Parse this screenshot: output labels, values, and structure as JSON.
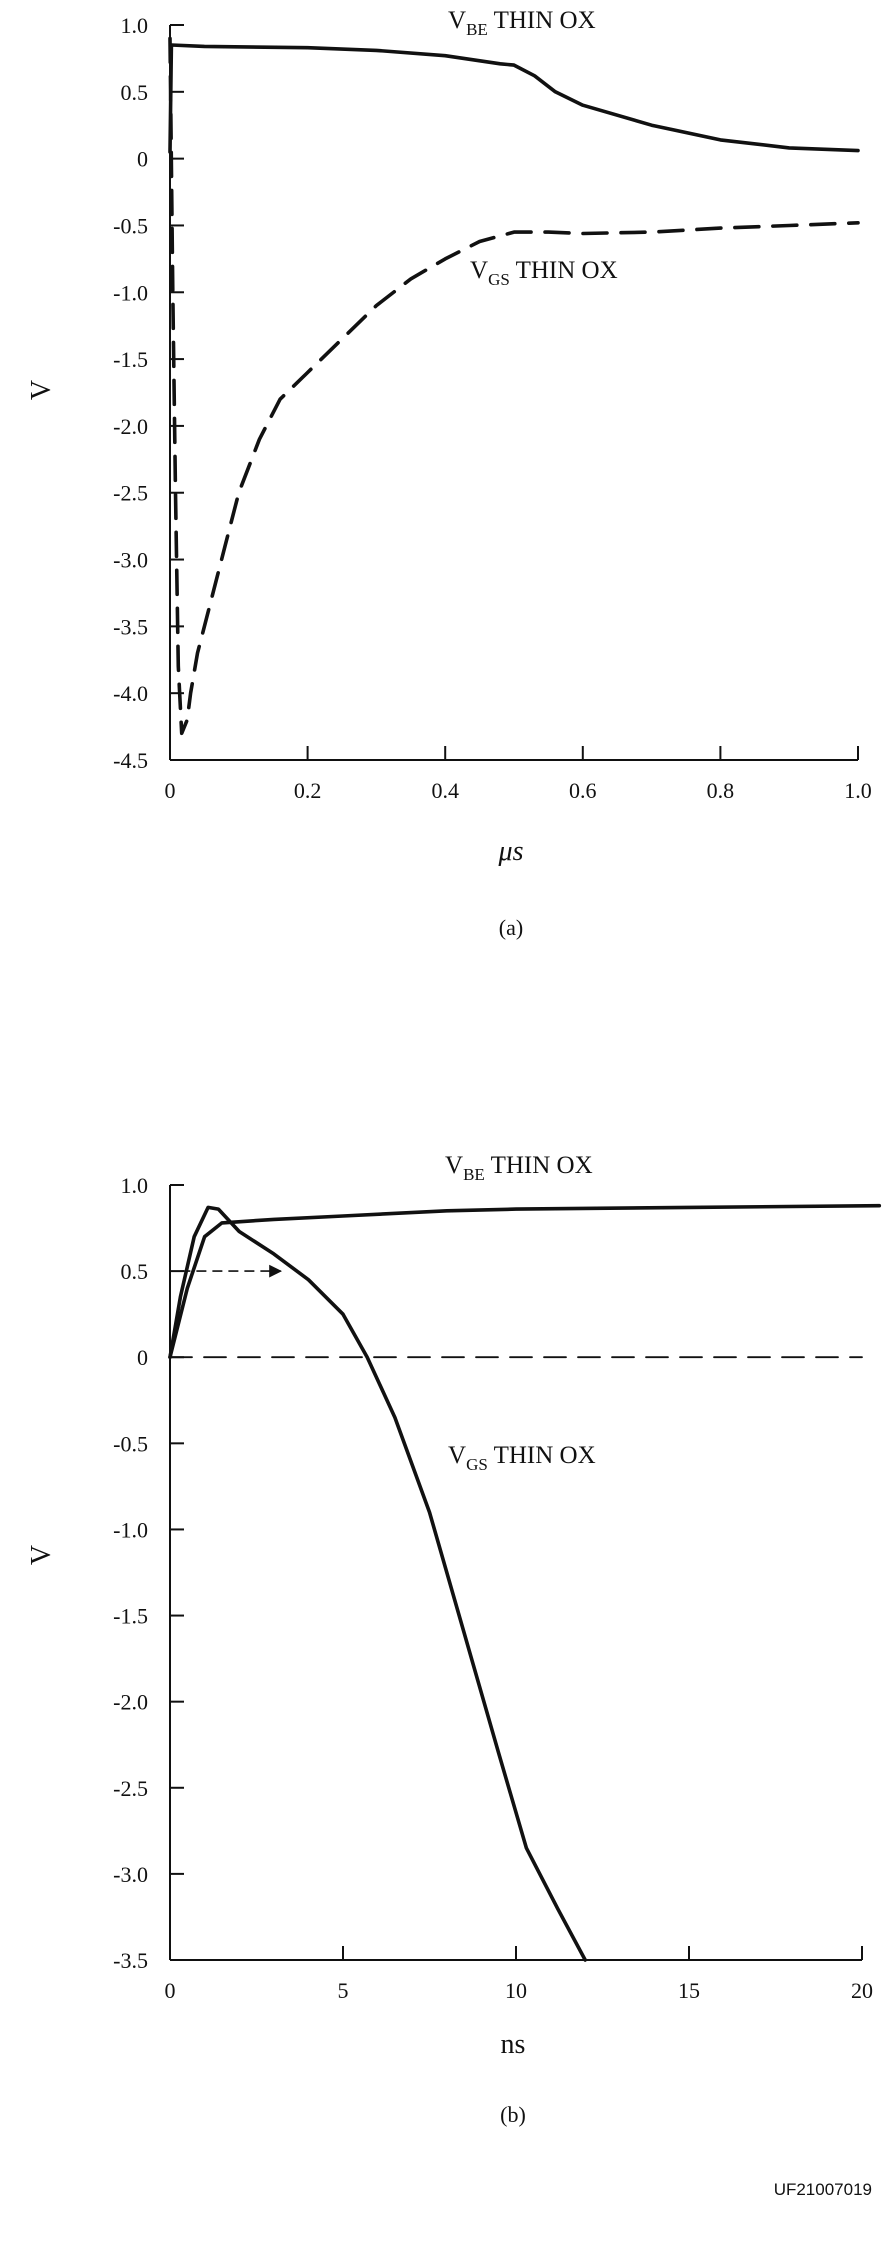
{
  "chart_data": [
    {
      "type": "line",
      "caption": "(a)",
      "xlabel": "μs",
      "ylabel": "V",
      "xlim": [
        0,
        1.0
      ],
      "ylim": [
        -4.5,
        1.0
      ],
      "x_ticks": [
        "0",
        "0.2",
        "0.4",
        "0.6",
        "0.8",
        "1.0"
      ],
      "y_ticks": [
        "1.0",
        "0.5",
        "0",
        "-0.5",
        "-1.0",
        "-1.5",
        "-2.0",
        "-2.5",
        "-3.0",
        "-3.5",
        "-4.0",
        "-4.5"
      ],
      "series": [
        {
          "name": "V_BE THIN OX",
          "label_main": "V",
          "label_sub": "BE",
          "label_rest": " THIN OX",
          "style": "solid",
          "points": [
            [
              0,
              0.05
            ],
            [
              0.002,
              0.85
            ],
            [
              0.05,
              0.84
            ],
            [
              0.2,
              0.83
            ],
            [
              0.3,
              0.81
            ],
            [
              0.4,
              0.77
            ],
            [
              0.48,
              0.71
            ],
            [
              0.5,
              0.7
            ],
            [
              0.53,
              0.62
            ],
            [
              0.56,
              0.5
            ],
            [
              0.6,
              0.4
            ],
            [
              0.7,
              0.25
            ],
            [
              0.8,
              0.14
            ],
            [
              0.9,
              0.08
            ],
            [
              1.0,
              0.06
            ]
          ]
        },
        {
          "name": "V_GS THIN OX",
          "label_main": "V",
          "label_sub": "GS",
          "label_rest": " THIN OX",
          "style": "dashed",
          "points": [
            [
              0,
              0.9
            ],
            [
              0.004,
              -1.0
            ],
            [
              0.008,
              -2.5
            ],
            [
              0.012,
              -3.8
            ],
            [
              0.017,
              -4.3
            ],
            [
              0.025,
              -4.2
            ],
            [
              0.03,
              -4.0
            ],
            [
              0.04,
              -3.7
            ],
            [
              0.06,
              -3.3
            ],
            [
              0.08,
              -2.9
            ],
            [
              0.1,
              -2.5
            ],
            [
              0.13,
              -2.1
            ],
            [
              0.16,
              -1.8
            ],
            [
              0.2,
              -1.6
            ],
            [
              0.25,
              -1.35
            ],
            [
              0.3,
              -1.1
            ],
            [
              0.35,
              -0.9
            ],
            [
              0.4,
              -0.75
            ],
            [
              0.45,
              -0.62
            ],
            [
              0.5,
              -0.55
            ],
            [
              0.55,
              -0.55
            ],
            [
              0.6,
              -0.56
            ],
            [
              0.7,
              -0.55
            ],
            [
              0.8,
              -0.52
            ],
            [
              0.9,
              -0.5
            ],
            [
              1.0,
              -0.48
            ]
          ]
        }
      ]
    },
    {
      "type": "line",
      "caption": "(b)",
      "xlabel": "ns",
      "ylabel": "V",
      "xlim": [
        0,
        20
      ],
      "ylim": [
        -3.5,
        1.0
      ],
      "x_ticks": [
        "0",
        "5",
        "10",
        "15",
        "20"
      ],
      "y_ticks": [
        "1.0",
        "0.5",
        "0",
        "-0.5",
        "-1.0",
        "-1.5",
        "-2.0",
        "-2.5",
        "-3.0",
        "-3.5"
      ],
      "series": [
        {
          "name": "V_BE THIN OX",
          "label_main": "V",
          "label_sub": "BE",
          "label_rest": " THIN OX",
          "style": "solid",
          "points": [
            [
              0,
              0
            ],
            [
              0.5,
              0.4
            ],
            [
              1.0,
              0.7
            ],
            [
              1.5,
              0.78
            ],
            [
              3,
              0.8
            ],
            [
              5,
              0.82
            ],
            [
              8,
              0.85
            ],
            [
              10,
              0.86
            ],
            [
              15,
              0.87
            ],
            [
              20.5,
              0.88
            ]
          ]
        },
        {
          "name": "V_GS THIN OX",
          "label_main": "V",
          "label_sub": "GS",
          "label_rest": " THIN OX",
          "style": "solid",
          "points": [
            [
              0,
              0
            ],
            [
              0.3,
              0.35
            ],
            [
              0.7,
              0.7
            ],
            [
              1.1,
              0.87
            ],
            [
              1.4,
              0.86
            ],
            [
              2,
              0.73
            ],
            [
              3,
              0.6
            ],
            [
              4,
              0.45
            ],
            [
              5,
              0.25
            ],
            [
              5.7,
              0
            ],
            [
              6.5,
              -0.35
            ],
            [
              7.5,
              -0.9
            ],
            [
              8.5,
              -1.6
            ],
            [
              9.5,
              -2.3
            ],
            [
              10.3,
              -2.85
            ],
            [
              11.2,
              -3.2
            ],
            [
              12,
              -3.5
            ]
          ]
        },
        {
          "name": "zero reference",
          "style": "dashed",
          "points": [
            [
              0,
              0
            ],
            [
              20,
              0
            ]
          ]
        }
      ],
      "annotation_arrow": {
        "from": [
          0.3,
          0.5
        ],
        "to": [
          3.2,
          0.5
        ]
      }
    }
  ],
  "figure_id": "UF21007019"
}
